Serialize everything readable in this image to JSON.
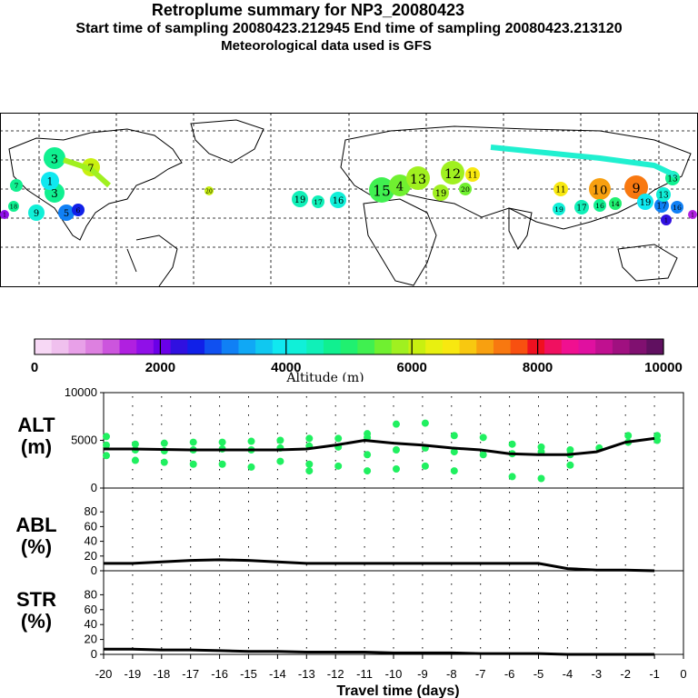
{
  "header": {
    "title": "Retroplume summary for NP3_20080423",
    "sampling": "Start time of sampling 20080423.212945     End time of sampling 20080423.213120",
    "met": "Meteorological data used is GFS"
  },
  "colorbar": {
    "tick_labels": [
      "0",
      "2000",
      "4000",
      "6000",
      "8000",
      "10000"
    ],
    "title": "Altitude (m)",
    "colors": [
      "#f7d8f5",
      "#f0c0ee",
      "#e8a0e8",
      "#dd80e0",
      "#cc55dd",
      "#b020e0",
      "#9010e8",
      "#6a00e8",
      "#3010e0",
      "#1020e8",
      "#1050f0",
      "#1080f5",
      "#10a8f5",
      "#10c8f0",
      "#10e8f0",
      "#10f0d8",
      "#10f0b8",
      "#10f090",
      "#20f070",
      "#40f050",
      "#70f030",
      "#a0f020",
      "#c8f010",
      "#e8f010",
      "#f8e810",
      "#f8c810",
      "#f8a010",
      "#f87810",
      "#f85010",
      "#f01020",
      "#f01060",
      "#f01090",
      "#e010a0",
      "#c01090",
      "#a01080",
      "#801070",
      "#601060"
    ]
  },
  "map": {
    "labels": [
      "1",
      "2",
      "3",
      "4",
      "5",
      "6",
      "7",
      "8",
      "9",
      "10",
      "11",
      "12",
      "13",
      "14",
      "15",
      "16",
      "17",
      "18",
      "19",
      "20"
    ]
  },
  "chart_data": [
    {
      "type": "line",
      "title": "ALT (m)",
      "panel_label_1": "ALT",
      "panel_label_2": "(m)",
      "ylim": [
        0,
        10000
      ],
      "yticks": [
        "10000",
        "5000",
        "0"
      ],
      "ytick_values": [
        10000,
        5000,
        0
      ],
      "x": [
        -20,
        -19,
        -18,
        -17,
        -16,
        -15,
        -14,
        -13,
        -12,
        -11,
        -10,
        -9,
        -8,
        -7,
        -6,
        -5,
        -4,
        -3,
        -2,
        -1
      ],
      "mean_line": [
        4100,
        4100,
        4050,
        4000,
        4000,
        4000,
        4000,
        4100,
        4500,
        5000,
        4700,
        4500,
        4200,
        4000,
        3600,
        3500,
        3500,
        3800,
        4800,
        5200
      ],
      "plume_points": [
        [
          -20,
          5400
        ],
        [
          -20,
          4500
        ],
        [
          -20,
          3400
        ],
        [
          -19,
          4600
        ],
        [
          -19,
          4000
        ],
        [
          -19,
          2900
        ],
        [
          -18,
          4700
        ],
        [
          -18,
          3900
        ],
        [
          -18,
          2700
        ],
        [
          -17,
          4800
        ],
        [
          -17,
          4000
        ],
        [
          -17,
          2500
        ],
        [
          -16,
          4800
        ],
        [
          -16,
          4100
        ],
        [
          -16,
          2500
        ],
        [
          -15,
          4900
        ],
        [
          -15,
          4000
        ],
        [
          -15,
          2200
        ],
        [
          -14,
          5000
        ],
        [
          -14,
          4200
        ],
        [
          -14,
          2800
        ],
        [
          -13,
          5200
        ],
        [
          -13,
          4400
        ],
        [
          -13,
          2500
        ],
        [
          -13,
          1800
        ],
        [
          -12,
          5200
        ],
        [
          -12,
          4300
        ],
        [
          -12,
          2300
        ],
        [
          -11,
          5700
        ],
        [
          -11,
          5300
        ],
        [
          -11,
          3500
        ],
        [
          -11,
          1800
        ],
        [
          -10,
          6700
        ],
        [
          -10,
          4000
        ],
        [
          -10,
          2000
        ],
        [
          -9,
          6800
        ],
        [
          -9,
          4200
        ],
        [
          -9,
          2300
        ],
        [
          -8,
          5500
        ],
        [
          -8,
          3800
        ],
        [
          -8,
          1800
        ],
        [
          -7,
          5300
        ],
        [
          -7,
          3500
        ],
        [
          -6,
          4600
        ],
        [
          -6,
          3600
        ],
        [
          -6,
          1200
        ],
        [
          -5,
          4300
        ],
        [
          -5,
          3800
        ],
        [
          -5,
          1000
        ],
        [
          -4,
          4000
        ],
        [
          -4,
          3500
        ],
        [
          -4,
          2400
        ],
        [
          -3,
          4200
        ],
        [
          -2,
          5500
        ],
        [
          -2,
          4800
        ],
        [
          -1,
          5500
        ],
        [
          -1,
          5000
        ]
      ]
    },
    {
      "type": "line",
      "title": "ABL (%)",
      "panel_label_1": "ABL",
      "panel_label_2": "(%)",
      "ylim": [
        0,
        100
      ],
      "yticks": [
        "80",
        "60",
        "40",
        "20",
        "0"
      ],
      "ytick_values": [
        80,
        60,
        40,
        20,
        0
      ],
      "x": [
        -20,
        -19,
        -18,
        -17,
        -16,
        -15,
        -14,
        -13,
        -12,
        -11,
        -10,
        -9,
        -8,
        -7,
        -6,
        -5,
        -4,
        -3,
        -2,
        -1
      ],
      "values": [
        10,
        10,
        12,
        14,
        15,
        14,
        12,
        10,
        10,
        10,
        10,
        10,
        10,
        10,
        10,
        10,
        3,
        1,
        1,
        0
      ]
    },
    {
      "type": "line",
      "title": "STR (%)",
      "panel_label_1": "STR",
      "panel_label_2": "(%)",
      "ylim": [
        0,
        100
      ],
      "yticks": [
        "80",
        "60",
        "40",
        "20",
        "0"
      ],
      "ytick_values": [
        80,
        60,
        40,
        20,
        0
      ],
      "x": [
        -20,
        -19,
        -18,
        -17,
        -16,
        -15,
        -14,
        -13,
        -12,
        -11,
        -10,
        -9,
        -8,
        -7,
        -6,
        -5,
        -4,
        -3,
        -2,
        -1
      ],
      "values": [
        7,
        7,
        6,
        6,
        5,
        4,
        4,
        3,
        3,
        3,
        2,
        2,
        2,
        1,
        1,
        1,
        0,
        0,
        0,
        0
      ],
      "xlabel": "Travel time (days)",
      "xticks": [
        "-20",
        "-19",
        "-18",
        "-17",
        "-16",
        "-15",
        "-14",
        "-13",
        "-12",
        "-11",
        "-10",
        "-9",
        "-8",
        "-7",
        "-6",
        "-5",
        "-4",
        "-3",
        "-2",
        "-1",
        "0"
      ],
      "xtick_values": [
        -20,
        -19,
        -18,
        -17,
        -16,
        -15,
        -14,
        -13,
        -12,
        -11,
        -10,
        -9,
        -8,
        -7,
        -6,
        -5,
        -4,
        -3,
        -2,
        -1,
        0
      ]
    }
  ]
}
